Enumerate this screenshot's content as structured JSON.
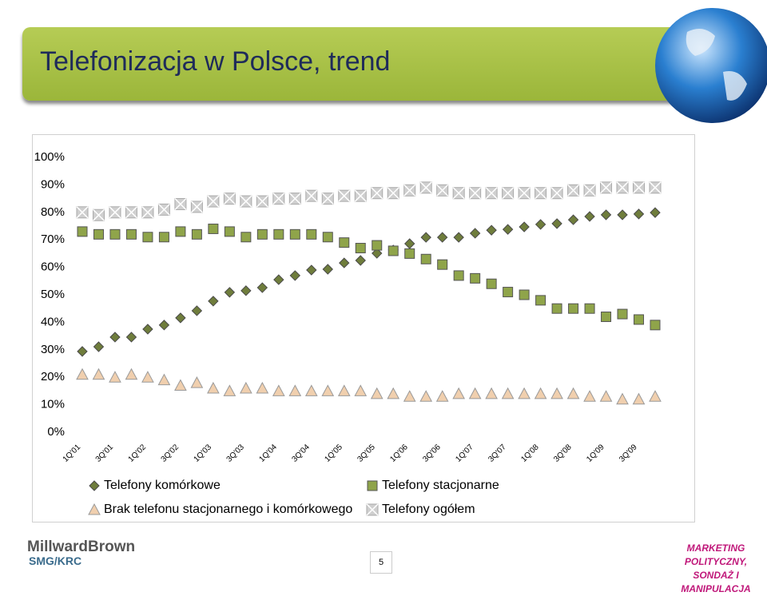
{
  "slide": {
    "title": "Telefonizacja w Polsce, trend",
    "logo_brand": "MillwardBrown",
    "logo_sub": "SMG/KRC",
    "footer_right": [
      "MARKETING POLITYCZNY,",
      "SONDAŻ I MANIPULACJA"
    ],
    "page_number": "5"
  },
  "chart_data": {
    "type": "scatter",
    "categories": [
      "1Q'01",
      null,
      "3Q'01",
      null,
      "1Q'02",
      null,
      "3Q'02",
      null,
      "1Q'03",
      null,
      "3Q'03",
      null,
      "1Q'04",
      null,
      "3Q'04",
      null,
      "1Q'05",
      null,
      "3Q'05",
      null,
      "1Q'06",
      null,
      "3Q'06",
      null,
      "1Q'07",
      null,
      "3Q'07",
      null,
      "1Q'08",
      null,
      "3Q'08",
      null,
      "1Q'09",
      null,
      "3Q'09",
      null
    ],
    "ylim": [
      0,
      100
    ],
    "yticks": [
      {
        "value": 0,
        "label": "0%"
      },
      {
        "value": 10,
        "label": "10%"
      },
      {
        "value": 20,
        "label": "20%"
      },
      {
        "value": 30,
        "label": "30%"
      },
      {
        "value": 40,
        "label": "40%"
      },
      {
        "value": 50,
        "label": "50%"
      },
      {
        "value": 60,
        "label": "60%"
      },
      {
        "value": 70,
        "label": "70%"
      },
      {
        "value": 80,
        "label": "80%"
      },
      {
        "value": 90,
        "label": "90%"
      },
      {
        "value": 100,
        "label": "100%"
      }
    ],
    "series": [
      {
        "name": "Telefony komórkowe",
        "marker": "diamond",
        "color": "#6f7d3c",
        "values": [
          29.4,
          31.1,
          34.6,
          34.6,
          37.5,
          39,
          41.6,
          44.2,
          47.7,
          50.9,
          51.5,
          52.6,
          55.5,
          57,
          59,
          59.3,
          61.6,
          62.5,
          65.1,
          66.3,
          68.6,
          70.9,
          70.9,
          70.9,
          72.4,
          73.5,
          73.8,
          74.7,
          75.6,
          75.9,
          77.3,
          78.5,
          79.1,
          79.1,
          79.4,
          79.9
        ]
      },
      {
        "name": "Telefony stacjonarne",
        "marker": "square",
        "color": "#8fa44a",
        "values": [
          73,
          72,
          72,
          72,
          71,
          71,
          73,
          72,
          74,
          73,
          71,
          72,
          72,
          72,
          72,
          71,
          69,
          67,
          68,
          66,
          65,
          63,
          61,
          57,
          56,
          54,
          51,
          50,
          48,
          45,
          45,
          45,
          42,
          43,
          41,
          39
        ]
      },
      {
        "name": "Brak telefonu stacjonarnego i komórkowego",
        "marker": "triangle",
        "color": "#f0cfae",
        "values": [
          21,
          21,
          20,
          21,
          20,
          19,
          17,
          18,
          16,
          15,
          16,
          16,
          15,
          15,
          15,
          15,
          15,
          15,
          14,
          14,
          13,
          13,
          13,
          14,
          14,
          14,
          14,
          14,
          14,
          14,
          14,
          13,
          13,
          12,
          12,
          13
        ]
      },
      {
        "name": "Telefony ogółem",
        "marker": "xsquare",
        "color": "#cfcfcf",
        "values": [
          80,
          79,
          80,
          80,
          80,
          81,
          83,
          82,
          84,
          85,
          84,
          84,
          85,
          85,
          86,
          85,
          86,
          86,
          87,
          87,
          88,
          89,
          88,
          87,
          87,
          87,
          87,
          87,
          87,
          87,
          88,
          88,
          89,
          89,
          89,
          89
        ]
      }
    ]
  }
}
